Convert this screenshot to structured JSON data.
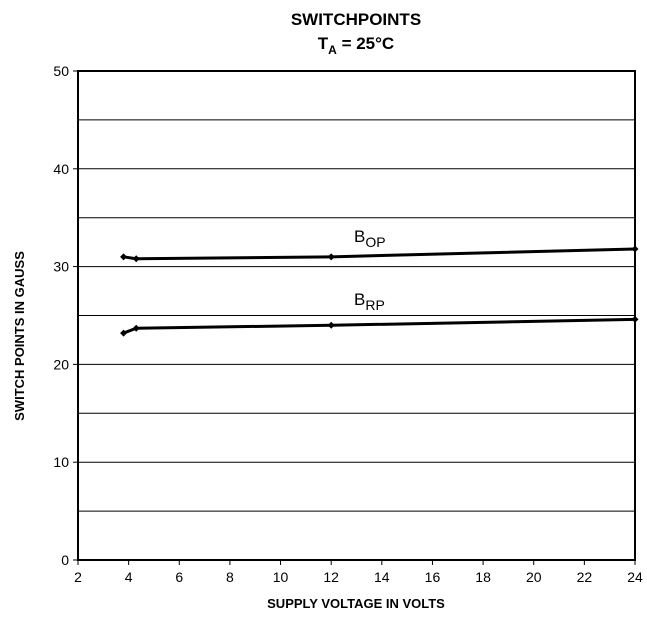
{
  "chart_data": {
    "type": "line",
    "title": "SWITCHPOINTS",
    "subtitle": {
      "main": "T",
      "sub": "A",
      "rest": " = 25°C"
    },
    "xlabel": "SUPPLY VOLTAGE IN VOLTS",
    "ylabel": "SWITCH POINTS IN GAUSS",
    "xlim": [
      2,
      24
    ],
    "ylim": [
      0,
      50
    ],
    "xticks": [
      "2",
      "4",
      "6",
      "8",
      "10",
      "12",
      "14",
      "16",
      "18",
      "20",
      "22",
      "24"
    ],
    "yticks": [
      "0",
      "10",
      "20",
      "30",
      "40",
      "50"
    ],
    "grid": "horizontal",
    "series": [
      {
        "name": "B_OP",
        "label_main": "B",
        "label_sub": "OP",
        "x": [
          3.8,
          4.3,
          12,
          24
        ],
        "y": [
          31.0,
          30.8,
          31.0,
          31.8
        ]
      },
      {
        "name": "B_RP",
        "label_main": "B",
        "label_sub": "RP",
        "x": [
          3.8,
          4.3,
          12,
          24
        ],
        "y": [
          23.2,
          23.7,
          24.0,
          24.6
        ]
      }
    ]
  }
}
